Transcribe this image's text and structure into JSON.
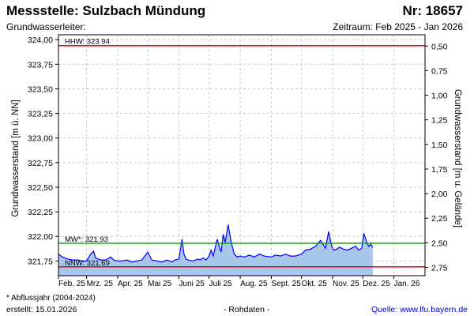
{
  "header": {
    "title": "Messstelle: Sulzbach Mündung",
    "nr": "Nr: 18657",
    "subtitle_left": "Grundwasserleiter:",
    "subtitle_right": "Zeitraum: Feb 2025 - Jan 2026"
  },
  "footer": {
    "note": "* Abflussjahr (2004-2024)",
    "created": "erstellt:  15.01.2026",
    "raw": "- Rohdaten -",
    "source": "Quelle: www.lfu.bayern.de"
  },
  "colors": {
    "line": "#0000ff",
    "fill": "#a9c6ec",
    "hhw": "#ee0000",
    "nnw": "#ee0000",
    "mw": "#00aa00",
    "grid": "#c8c8c8"
  },
  "chart_data": {
    "type": "area",
    "ylabel_left": "Grundwasserstand [m ü. NN]",
    "ylabel_right": "Grundwasserstand [m u. Gelände]",
    "ylim": [
      321.6,
      324.05
    ],
    "yticks_left": [
      "324,00",
      "323,75",
      "323,50",
      "323,25",
      "323,00",
      "322,75",
      "322,50",
      "322,25",
      "322,00",
      "321,75"
    ],
    "yticks_right": [
      "0,50",
      "0,75",
      "1,00",
      "1,25",
      "1,50",
      "1,75",
      "2,00",
      "2,25",
      "2,50",
      "2,75"
    ],
    "xticks": [
      "Feb. 25",
      "Mrz. 25",
      "Apr. 25",
      "Mai 25",
      "Juni 25",
      "Juli 25",
      "Aug. 25",
      "Sept. 25",
      "Okt. 25",
      "Nov. 25",
      "Dez. 25",
      "Jan. 26"
    ],
    "grid": true,
    "reference_lines": [
      {
        "label": "HHW: 323.94",
        "value": 323.94
      },
      {
        "label": "MW*: 321.93",
        "value": 321.93
      },
      {
        "label": "NNW: 321.69",
        "value": 321.69
      }
    ],
    "series": [
      {
        "x": [
          "2025-02-01",
          "2025-02-05",
          "2025-02-10",
          "2025-02-15",
          "2025-02-20",
          "2025-02-25",
          "2025-03-01",
          "2025-03-05",
          "2025-03-08",
          "2025-03-10",
          "2025-03-15",
          "2025-03-20",
          "2025-03-25",
          "2025-03-28",
          "2025-04-01",
          "2025-04-05",
          "2025-04-10",
          "2025-04-15",
          "2025-04-20",
          "2025-04-25",
          "2025-05-01",
          "2025-05-05",
          "2025-05-10",
          "2025-05-15",
          "2025-05-20",
          "2025-05-25",
          "2025-05-28",
          "2025-06-01",
          "2025-06-04",
          "2025-06-06",
          "2025-06-08",
          "2025-06-10",
          "2025-06-15",
          "2025-06-20",
          "2025-06-22",
          "2025-06-25",
          "2025-06-28",
          "2025-07-01",
          "2025-07-03",
          "2025-07-05",
          "2025-07-07",
          "2025-07-09",
          "2025-07-11",
          "2025-07-13",
          "2025-07-15",
          "2025-07-17",
          "2025-07-20",
          "2025-07-23",
          "2025-07-26",
          "2025-07-29",
          "2025-08-01",
          "2025-08-05",
          "2025-08-10",
          "2025-08-15",
          "2025-08-20",
          "2025-08-25",
          "2025-09-01",
          "2025-09-05",
          "2025-09-10",
          "2025-09-15",
          "2025-09-20",
          "2025-09-25",
          "2025-10-01",
          "2025-10-05",
          "2025-10-10",
          "2025-10-15",
          "2025-10-20",
          "2025-10-25",
          "2025-10-28",
          "2025-10-31",
          "2025-11-02",
          "2025-11-05",
          "2025-11-08",
          "2025-11-12",
          "2025-11-16",
          "2025-11-20",
          "2025-11-24",
          "2025-11-27",
          "2025-11-30",
          "2025-12-02",
          "2025-12-05",
          "2025-12-07",
          "2025-12-09",
          "2025-12-11"
        ],
        "y": [
          321.82,
          321.79,
          321.77,
          321.76,
          321.76,
          321.75,
          321.75,
          321.82,
          321.85,
          321.78,
          321.76,
          321.76,
          321.79,
          321.76,
          321.75,
          321.75,
          321.76,
          321.74,
          321.75,
          321.76,
          321.84,
          321.76,
          321.75,
          321.74,
          321.76,
          321.74,
          321.76,
          321.77,
          321.97,
          321.82,
          321.77,
          321.76,
          321.75,
          321.77,
          321.76,
          321.78,
          321.76,
          321.8,
          321.86,
          321.8,
          321.88,
          321.97,
          321.9,
          321.84,
          322.02,
          321.94,
          322.12,
          321.94,
          321.82,
          321.79,
          321.8,
          321.79,
          321.81,
          321.79,
          321.82,
          321.8,
          321.79,
          321.81,
          321.8,
          321.82,
          321.8,
          321.8,
          321.82,
          321.86,
          321.87,
          321.9,
          321.96,
          321.88,
          322.05,
          321.9,
          321.86,
          321.87,
          321.89,
          321.87,
          321.86,
          321.88,
          321.9,
          321.86,
          321.88,
          322.03,
          321.94,
          321.9,
          321.92,
          321.89
        ]
      }
    ]
  }
}
